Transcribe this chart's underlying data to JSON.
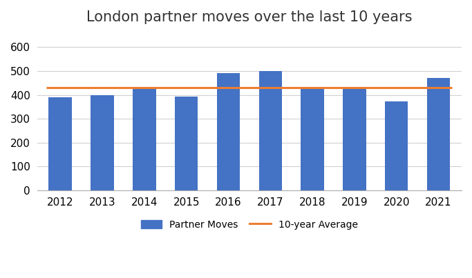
{
  "title": "London partner moves over the last 10 years",
  "years": [
    2012,
    2013,
    2014,
    2015,
    2016,
    2017,
    2018,
    2019,
    2020,
    2021
  ],
  "values": [
    390,
    400,
    428,
    393,
    492,
    500,
    424,
    428,
    372,
    471
  ],
  "average": 430,
  "bar_color": "#4472C4",
  "average_color": "#ED7D31",
  "ylim": [
    0,
    660
  ],
  "yticks": [
    0,
    100,
    200,
    300,
    400,
    500,
    600
  ],
  "title_fontsize": 15,
  "tick_fontsize": 11,
  "legend_fontsize": 10,
  "bar_width": 0.55,
  "average_linewidth": 2.2,
  "legend_label_bar": "Partner Moves",
  "legend_label_line": "10-year Average",
  "background_color": "#ffffff",
  "grid_color": "#d0d0d0"
}
